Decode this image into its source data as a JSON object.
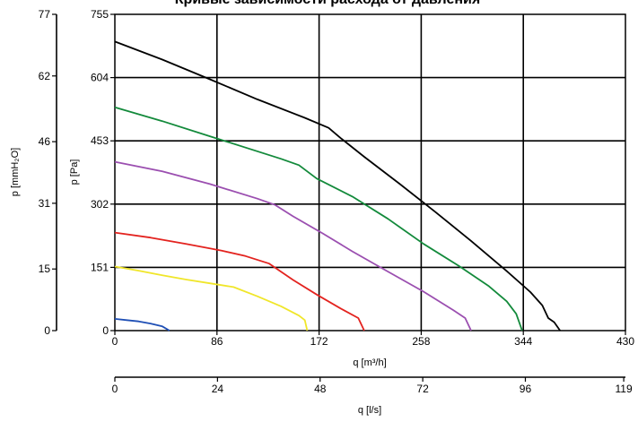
{
  "chart_data": {
    "type": "line",
    "title": "Кривые зависимости расхода от давления",
    "x_primary": {
      "label": "q [m³/h]",
      "ticks": [
        0,
        86,
        172,
        258,
        344,
        430
      ],
      "range": [
        0,
        430
      ]
    },
    "x_secondary": {
      "label": "q [l/s]",
      "ticks": [
        0,
        24,
        48,
        72,
        96,
        119
      ],
      "range": [
        0,
        119.4
      ]
    },
    "y_primary": {
      "label": "p [Pa]",
      "ticks": [
        0,
        151,
        302,
        453,
        604,
        755
      ],
      "range": [
        0,
        755
      ]
    },
    "y_secondary": {
      "label": "p [mmH₂O]",
      "ticks": [
        0,
        15,
        31,
        46,
        62,
        77
      ],
      "range": [
        0,
        77
      ]
    },
    "grid": true,
    "series": [
      {
        "color": "#1f4fb5",
        "x": [
          0,
          10,
          20,
          30,
          40,
          46
        ],
        "y": [
          28,
          25,
          22,
          17,
          10,
          0
        ]
      },
      {
        "color": "#f0e62a",
        "x": [
          0,
          20,
          40,
          60,
          80,
          100,
          120,
          140,
          155,
          160,
          162
        ],
        "y": [
          153,
          143,
          132,
          122,
          113,
          104,
          82,
          58,
          36,
          25,
          0
        ]
      },
      {
        "color": "#e3231f",
        "x": [
          0,
          30,
          60,
          90,
          110,
          130,
          150,
          170,
          190,
          205,
          210
        ],
        "y": [
          234,
          222,
          207,
          191,
          178,
          160,
          121,
          86,
          53,
          30,
          0
        ]
      },
      {
        "color": "#9b4fb0",
        "x": [
          0,
          40,
          80,
          120,
          135,
          150,
          175,
          200,
          230,
          260,
          285,
          295,
          300
        ],
        "y": [
          403,
          380,
          350,
          315,
          300,
          273,
          232,
          189,
          141,
          93,
          49,
          30,
          0
        ]
      },
      {
        "color": "#138a3b",
        "x": [
          0,
          40,
          80,
          110,
          140,
          155,
          170,
          200,
          230,
          260,
          290,
          315,
          330,
          338,
          343
        ],
        "y": [
          533,
          500,
          464,
          437,
          410,
          395,
          363,
          320,
          267,
          207,
          154,
          106,
          70,
          40,
          0
        ]
      },
      {
        "color": "#000000",
        "x": [
          0,
          40,
          80,
          120,
          160,
          180,
          190,
          210,
          240,
          270,
          300,
          330,
          350,
          360,
          365,
          370,
          375
        ],
        "y": [
          690,
          647,
          600,
          552,
          508,
          484,
          460,
          415,
          350,
          283,
          214,
          142,
          92,
          60,
          30,
          20,
          0
        ]
      }
    ]
  }
}
